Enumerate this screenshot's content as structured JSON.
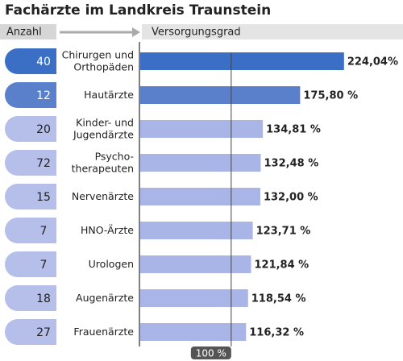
{
  "chart_data": {
    "type": "bar",
    "orientation": "horizontal",
    "title": "Fachärzte im Landkreis Traunstein",
    "count_header": "Anzahl",
    "value_header": "Versorgungsgrad",
    "categories": [
      [
        "Chirurgen und",
        "Orthopäden"
      ],
      [
        "Hautärzte"
      ],
      [
        "Kinder- und",
        "Jugendärzte"
      ],
      [
        "Psycho-",
        "therapeuten"
      ],
      [
        "Nervenärzte"
      ],
      [
        "HNO-Ärzte"
      ],
      [
        "Urologen"
      ],
      [
        "Augenärzte"
      ],
      [
        "Frauenärzte"
      ]
    ],
    "counts": [
      40,
      12,
      20,
      72,
      15,
      7,
      7,
      18,
      27
    ],
    "values": [
      224.04,
      175.8,
      134.81,
      132.48,
      132.0,
      123.71,
      121.84,
      118.54,
      116.32
    ],
    "value_labels": [
      "224,04%",
      "175,80 %",
      "134,81 %",
      "132,48 %",
      "132,00 %",
      "123,71 %",
      "121,84 %",
      "118,54 %",
      "116,32 %"
    ],
    "colors": [
      "#3b6fc6",
      "#5a80cb",
      "#a8b5e6",
      "#a8b5e6",
      "#a8b5e6",
      "#a8b5e6",
      "#a8b5e6",
      "#a8b5e6",
      "#a8b5e6"
    ],
    "xlim": [
      0,
      288
    ],
    "reference": {
      "value": 100,
      "label": "100 %"
    }
  }
}
